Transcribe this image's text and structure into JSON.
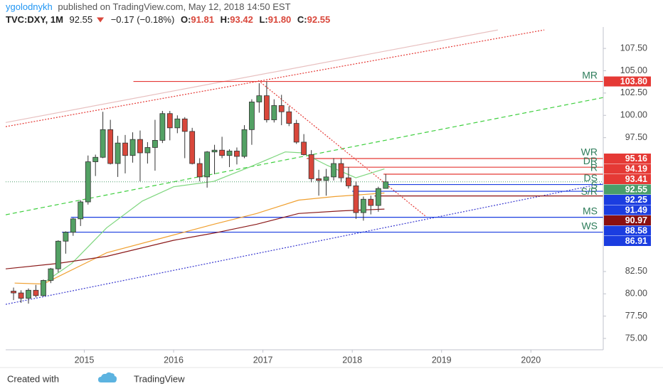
{
  "header": {
    "author": "ygolodnykh",
    "published": "published on TradingView.com, May 12, 2018 14:50 EST",
    "symbol": "TVC:DXY, 1M",
    "price": "92.55",
    "change": "−0.17 (−0.18%)",
    "ohlc": [
      {
        "label": "O:",
        "value": "91.81"
      },
      {
        "label": "H:",
        "value": "93.42"
      },
      {
        "label": "L:",
        "value": "91.80"
      },
      {
        "label": "C:",
        "value": "92.55"
      }
    ]
  },
  "chart_data": {
    "type": "candlestick",
    "xlim": [
      2014.12,
      2020.81
    ],
    "ylim": [
      73.73,
      109.9
    ],
    "xticks": [
      2015,
      2016,
      2017,
      2018,
      2019,
      2020
    ],
    "yticks": [
      {
        "value": 75,
        "label": "75.00"
      },
      {
        "value": 77.5,
        "label": "77.50"
      },
      {
        "value": 80,
        "label": "80.00"
      },
      {
        "value": 82.5,
        "label": "82.50"
      },
      {
        "value": 97.5,
        "label": "97.50"
      },
      {
        "value": 100,
        "label": "100.00"
      },
      {
        "value": 102.5,
        "label": "102.50"
      },
      {
        "value": 105,
        "label": "105.00"
      },
      {
        "value": 107.5,
        "label": "107.50"
      }
    ],
    "grid": false,
    "up_color": "#53a164",
    "down_color": "#d9473b",
    "x": [
      2014.208,
      2014.292,
      2014.375,
      2014.458,
      2014.542,
      2014.625,
      2014.708,
      2014.792,
      2014.875,
      2014.958,
      2015.042,
      2015.125,
      2015.208,
      2015.292,
      2015.375,
      2015.458,
      2015.542,
      2015.625,
      2015.708,
      2015.792,
      2015.875,
      2015.958,
      2016.042,
      2016.125,
      2016.208,
      2016.292,
      2016.375,
      2016.458,
      2016.542,
      2016.625,
      2016.708,
      2016.792,
      2016.875,
      2016.958,
      2017.042,
      2017.125,
      2017.208,
      2017.292,
      2017.375,
      2017.458,
      2017.542,
      2017.625,
      2017.708,
      2017.792,
      2017.875,
      2017.958,
      2018.042,
      2018.125,
      2018.208,
      2018.292,
      2018.375
    ],
    "open": [
      80.3,
      80.1,
      79.5,
      80.4,
      79.8,
      81.5,
      82.8,
      85.9,
      86.9,
      88.4,
      90.3,
      94.8,
      95.3,
      98.4,
      94.6,
      96.9,
      95.5,
      97.3,
      95.8,
      96.4,
      97.2,
      100.2,
      98.6,
      99.6,
      98.2,
      94.6,
      93.1,
      95.9,
      96.1,
      95.5,
      96.0,
      95.4,
      98.4,
      101.5,
      102.2,
      99.5,
      101.1,
      100.4,
      99.1,
      97.0,
      95.6,
      92.9,
      92.7,
      93.1,
      94.6,
      93.0,
      92.1,
      89.1,
      90.6,
      89.9,
      91.81
    ],
    "high": [
      80.7,
      80.4,
      80.6,
      81.0,
      81.6,
      82.9,
      86.0,
      87.0,
      88.5,
      90.5,
      95.5,
      95.6,
      100.4,
      99.5,
      97.7,
      97.8,
      98.1,
      98.3,
      97.0,
      99.5,
      100.5,
      100.5,
      100.0,
      99.8,
      98.6,
      95.2,
      96.0,
      96.7,
      97.6,
      96.2,
      96.4,
      98.9,
      101.8,
      103.6,
      103.8,
      101.8,
      102.3,
      101.0,
      99.5,
      97.9,
      96.1,
      93.9,
      94.0,
      95.2,
      95.2,
      94.2,
      92.6,
      90.9,
      91.0,
      92.0,
      93.42
    ],
    "low": [
      79.3,
      79.0,
      78.9,
      79.6,
      79.7,
      81.2,
      82.4,
      84.5,
      86.5,
      87.6,
      90.0,
      93.2,
      95.2,
      94.5,
      93.1,
      93.5,
      94.7,
      92.6,
      94.6,
      93.8,
      96.9,
      97.2,
      98.0,
      95.2,
      94.5,
      92.6,
      91.9,
      93.4,
      95.2,
      94.2,
      94.5,
      95.2,
      96.7,
      100.3,
      99.2,
      99.2,
      98.9,
      98.8,
      96.8,
      95.5,
      92.5,
      91.0,
      91.0,
      92.7,
      92.5,
      91.8,
      88.4,
      88.2,
      88.9,
      89.2,
      91.8
    ],
    "close": [
      80.1,
      79.5,
      80.4,
      79.8,
      81.5,
      82.8,
      85.9,
      86.9,
      88.4,
      90.3,
      94.8,
      95.3,
      98.4,
      94.6,
      96.9,
      95.5,
      97.3,
      95.8,
      96.4,
      97.2,
      100.2,
      98.6,
      99.6,
      98.2,
      94.6,
      93.1,
      95.9,
      96.1,
      95.5,
      96.0,
      95.4,
      98.4,
      101.5,
      102.2,
      99.5,
      101.1,
      100.4,
      99.1,
      97.0,
      95.6,
      92.9,
      92.7,
      93.1,
      94.6,
      93.0,
      92.1,
      89.1,
      90.6,
      89.9,
      91.8,
      92.55
    ],
    "moving_averages": [
      {
        "color": "#7ed67e",
        "x": [
          2014.54,
          2014.86,
          2015.25,
          2015.65,
          2016.0,
          2016.45,
          2016.85,
          2017.25,
          2017.44,
          2017.72,
          2018.04,
          2018.36
        ],
        "values": [
          81.2,
          83.4,
          87.4,
          90.4,
          92.0,
          92.6,
          94.2,
          95.9,
          95.8,
          94.4,
          93.0,
          94.0
        ]
      },
      {
        "color": "#f0a030",
        "x": [
          2014.22,
          2014.54,
          2015.25,
          2016.0,
          2016.45,
          2016.93,
          2017.4,
          2017.8,
          2018.36
        ],
        "values": [
          81.2,
          81.1,
          84.6,
          86.6,
          87.8,
          89.0,
          90.5,
          90.9,
          91.3
        ]
      },
      {
        "color": "#8b1a1a",
        "x": [
          2014.12,
          2014.7,
          2015.25,
          2016.0,
          2016.45,
          2016.93,
          2017.4,
          2017.88,
          2018.36
        ],
        "values": [
          82.8,
          83.4,
          84.2,
          86.0,
          86.8,
          87.8,
          89.0,
          89.3,
          89.5
        ]
      }
    ],
    "trendlines": [
      {
        "color": "#e8c0c0",
        "style": "solid",
        "x": [
          2014.12,
          2019.63
        ],
        "values": [
          99.2,
          109.57
        ]
      },
      {
        "color": "#e53935",
        "style": "dotted",
        "x": [
          2014.12,
          2020.15
        ],
        "values": [
          98.74,
          109.57
        ]
      },
      {
        "color": "#3ecf3e",
        "style": "dashed",
        "x": [
          2014.12,
          2020.81
        ],
        "values": [
          88.86,
          102.0
        ]
      },
      {
        "color": "#e53935",
        "style": "dotted",
        "x": [
          2016.95,
          2018.83
        ],
        "values": [
          103.9,
          88.62
        ]
      },
      {
        "color": "#3a3ad0",
        "style": "dotted",
        "x": [
          2014.12,
          2020.81
        ],
        "values": [
          78.82,
          92.37
        ]
      }
    ],
    "levels": [
      {
        "label": "MR",
        "value": 103.8,
        "label_value": "103.80",
        "color": "#e53935",
        "start": 2015.55
      },
      {
        "label": "WR",
        "value": 95.16,
        "label_value": "95.16",
        "color": "#e53935",
        "start": 2017.49
      },
      {
        "label": "DR",
        "value": 94.19,
        "label_value": "94.19",
        "color": "#e53935",
        "start": 2017.85
      },
      {
        "label": "R",
        "value": 93.41,
        "label_value": "93.41",
        "color": "#e53935",
        "start": 2018.35
      },
      {
        "label": "DS",
        "value": 92.25,
        "label_value": "92.25",
        "color": "#1b3de0",
        "start": 2018.35
      },
      {
        "label": "S",
        "value": 91.49,
        "label_value": "91.49",
        "color": "#1b3de0",
        "start": 2018.0
      },
      {
        "label": "S/R",
        "value": 90.97,
        "label_value": "90.97",
        "color": "#8b1010",
        "start": 2018.25
      },
      {
        "label": "MS",
        "value": 88.58,
        "label_value": "88.58",
        "color": "#1b3de0",
        "start": 2014.85
      },
      {
        "label": "WS",
        "value": 86.91,
        "label_value": "86.91",
        "color": "#1b3de0",
        "start": 2014.75
      }
    ],
    "current_price": {
      "value": 92.55,
      "label": "92.55",
      "color": "#4a9e6a"
    }
  },
  "footer": {
    "created": "Created with",
    "brand": "TradingView"
  }
}
